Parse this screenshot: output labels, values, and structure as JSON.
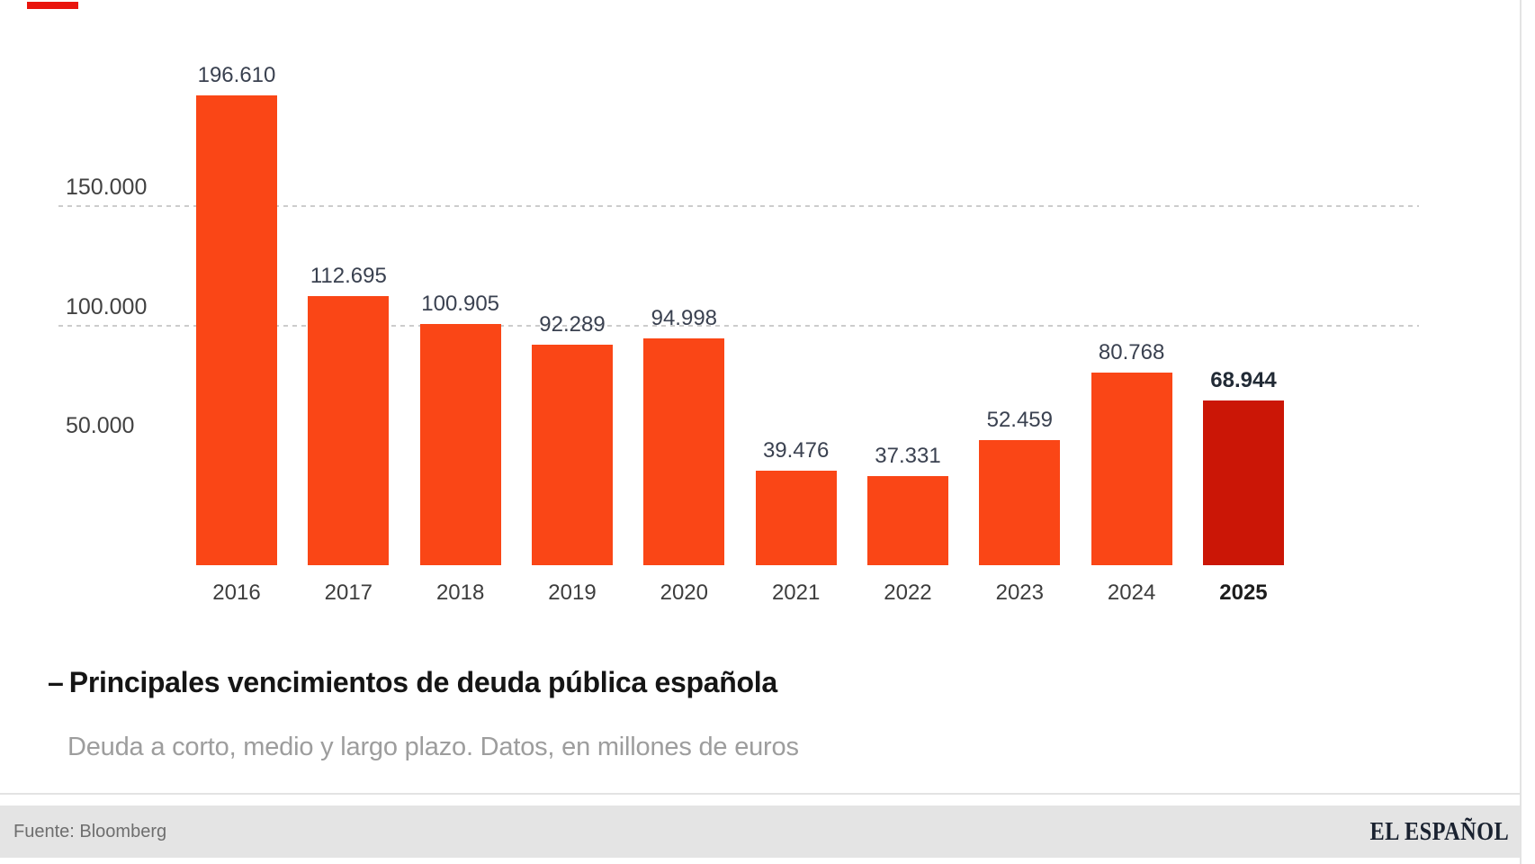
{
  "page": {
    "accent_dash_color": "#e9150d"
  },
  "chart_data": {
    "type": "bar",
    "title": "Principales vencimientos de deuda pública española",
    "title_prefix": "–",
    "subtitle": "Deuda a corto, medio y largo plazo. Datos, en millones de euros",
    "unit": "millones de euros",
    "categories": [
      "2016",
      "2017",
      "2018",
      "2019",
      "2020",
      "2021",
      "2022",
      "2023",
      "2024",
      "2025"
    ],
    "values": [
      196610,
      112695,
      100905,
      92289,
      94998,
      39476,
      37331,
      52459,
      80768,
      68944
    ],
    "value_labels": [
      "196.610",
      "112.695",
      "100.905",
      "92.289",
      "94.998",
      "39.476",
      "37.331",
      "52.459",
      "80.768",
      "68.944"
    ],
    "highlight_index": 9,
    "colors": {
      "bar": "#fa4616",
      "highlight_bar": "#cb1606",
      "gridline": "#cccccc",
      "value_label": "#3a4150",
      "year_label": "#3d3d3d"
    },
    "y_axis": {
      "ticks": [
        {
          "label": "150.000",
          "value": 150000,
          "gridline": true
        },
        {
          "label": "100.000",
          "value": 100000,
          "gridline": true
        },
        {
          "label": "50.000",
          "value": 50000,
          "gridline": false
        }
      ],
      "range": [
        0,
        210000
      ]
    },
    "grid": "horizontal-dashed",
    "legend": "none"
  },
  "footer": {
    "source_label": "Fuente: Bloomberg",
    "brand_logo": "EL ESPAÑOL"
  }
}
